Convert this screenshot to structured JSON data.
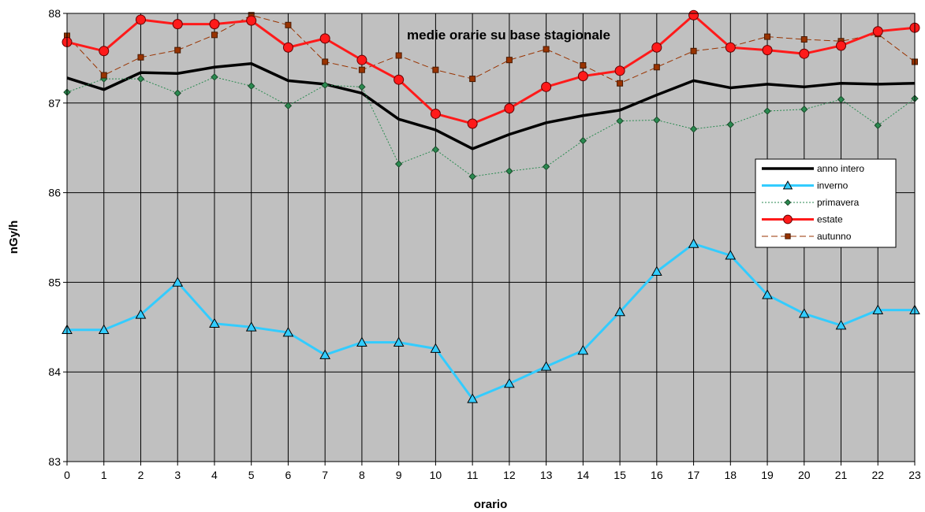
{
  "chart_data": {
    "type": "line",
    "title": "medie orarie su base stagionale",
    "xlabel": "orario",
    "ylabel": "nGy/h",
    "ylim": [
      83,
      88
    ],
    "yticks": [
      83,
      84,
      85,
      86,
      87,
      88
    ],
    "grid": true,
    "legend_position": "right",
    "x": [
      0,
      1,
      2,
      3,
      4,
      5,
      6,
      7,
      8,
      9,
      10,
      11,
      12,
      13,
      14,
      15,
      16,
      17,
      18,
      19,
      20,
      21,
      22,
      23
    ],
    "series": [
      {
        "name": "anno intero",
        "color": "#000000",
        "marker": "none",
        "style": "solid",
        "values": [
          87.28,
          87.15,
          87.34,
          87.33,
          87.4,
          87.44,
          87.25,
          87.21,
          87.11,
          86.82,
          86.7,
          86.49,
          86.65,
          86.78,
          86.86,
          86.92,
          87.09,
          87.25,
          87.17,
          87.21,
          87.18,
          87.22,
          87.21,
          87.22
        ]
      },
      {
        "name": "inverno",
        "color": "#33ccff",
        "marker": "triangle",
        "style": "solid",
        "values": [
          84.47,
          84.47,
          84.64,
          85.0,
          84.54,
          84.5,
          84.44,
          84.19,
          84.33,
          84.33,
          84.26,
          83.7,
          83.87,
          84.06,
          84.24,
          84.67,
          85.12,
          85.43,
          85.3,
          84.86,
          84.65,
          84.52,
          84.69,
          84.69
        ]
      },
      {
        "name": "primavera",
        "color": "#2a8a50",
        "marker": "diamond",
        "style": "dotted",
        "values": [
          87.12,
          87.27,
          87.27,
          87.11,
          87.29,
          87.19,
          86.97,
          87.2,
          87.18,
          86.32,
          86.48,
          86.18,
          86.24,
          86.29,
          86.58,
          86.8,
          86.81,
          86.71,
          86.76,
          86.91,
          86.93,
          87.04,
          86.75,
          87.05
        ]
      },
      {
        "name": "estate",
        "color": "#ff1a1a",
        "marker": "circle",
        "style": "solid",
        "values": [
          87.68,
          87.58,
          87.93,
          87.88,
          87.88,
          87.92,
          87.62,
          87.72,
          87.48,
          87.26,
          86.88,
          86.77,
          86.94,
          87.18,
          87.3,
          87.36,
          87.62,
          87.98,
          87.62,
          87.59,
          87.55,
          87.64,
          87.8,
          87.84
        ]
      },
      {
        "name": "autunno",
        "color": "#993300",
        "marker": "square",
        "style": "dashed",
        "values": [
          87.75,
          87.31,
          87.51,
          87.59,
          87.76,
          87.98,
          87.87,
          87.46,
          87.37,
          87.53,
          87.37,
          87.27,
          87.48,
          87.6,
          87.42,
          87.22,
          87.4,
          87.58,
          87.63,
          87.74,
          87.71,
          87.69,
          87.77,
          87.46
        ]
      }
    ]
  }
}
